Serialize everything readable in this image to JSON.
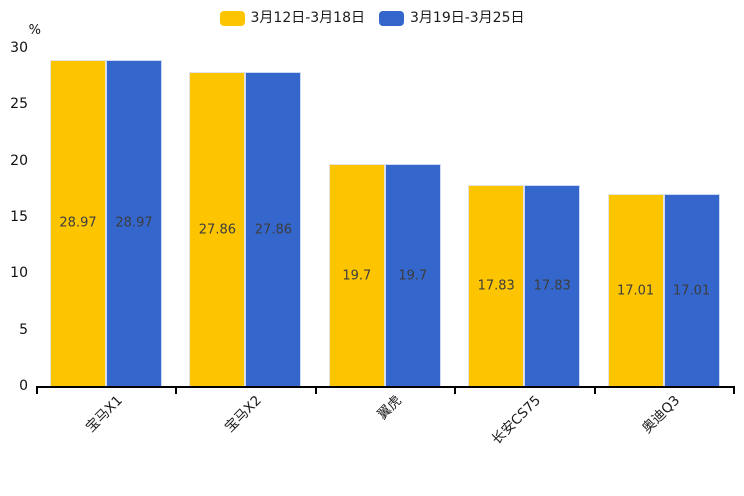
{
  "chart_data": {
    "type": "bar",
    "title": "",
    "unit_label": "%",
    "categories": [
      "宝马X1",
      "宝马X2",
      "翼虎",
      "长安CS75",
      "奥迪Q3"
    ],
    "series": [
      {
        "name": "3月12日-3月18日",
        "color": "#FDC500",
        "values": [
          28.97,
          27.86,
          19.7,
          17.83,
          17.01
        ]
      },
      {
        "name": "3月19日-3月25日",
        "color": "#3566CB",
        "values": [
          28.97,
          27.86,
          19.7,
          17.83,
          17.01
        ]
      }
    ],
    "ylim": [
      0,
      30
    ],
    "yticks": [
      0,
      5,
      10,
      15,
      20,
      25,
      30
    ],
    "legend_position": "top",
    "grid": false,
    "value_labels_shown": true,
    "colors": {
      "value_label_text": "#3d3d3d",
      "axis_line": "#000000",
      "tick_text": "#111111"
    }
  }
}
